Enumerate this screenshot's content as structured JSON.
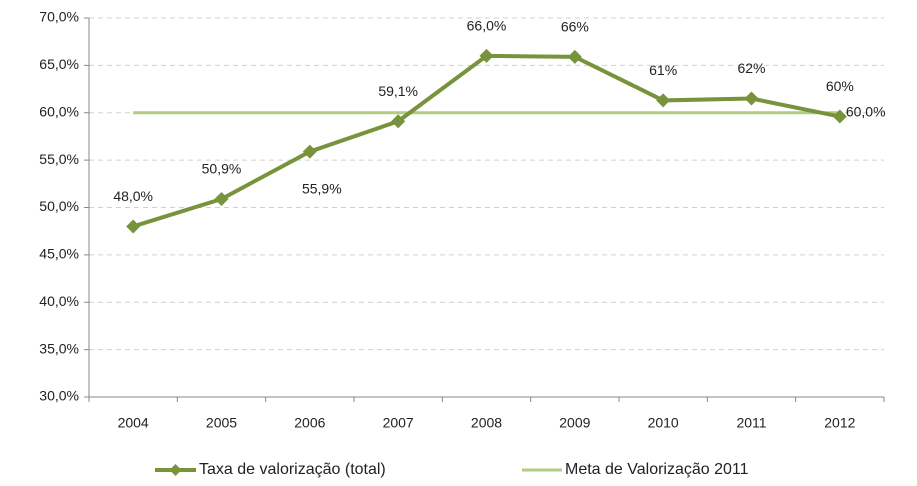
{
  "chart_data": {
    "type": "line",
    "categories": [
      "2004",
      "2005",
      "2006",
      "2007",
      "2008",
      "2009",
      "2010",
      "2011",
      "2012"
    ],
    "series": [
      {
        "name": "Taxa de valorização (total)",
        "color": "#77933c",
        "values": [
          48.0,
          50.9,
          55.9,
          59.1,
          66.0,
          65.9,
          61.3,
          61.5,
          59.6
        ],
        "value_labels": [
          "48,0%",
          "50,9%",
          "55,9%",
          "59,1%",
          "66,0%",
          "66%",
          "61%",
          "62%",
          "60%"
        ]
      },
      {
        "name": "Meta de Valorização 2011",
        "color": "#b3cc82",
        "values": [
          60,
          60,
          60,
          60,
          60,
          60,
          60,
          60,
          60
        ],
        "value_labels": [
          null,
          null,
          null,
          null,
          null,
          null,
          null,
          null,
          "60,0%"
        ]
      }
    ],
    "ylim": [
      30,
      70
    ],
    "yticks": [
      {
        "value": 30,
        "label": "30,0%"
      },
      {
        "value": 35,
        "label": "35,0%"
      },
      {
        "value": 40,
        "label": "40,0%"
      },
      {
        "value": 45,
        "label": "45,0%"
      },
      {
        "value": 50,
        "label": "50,0%"
      },
      {
        "value": 55,
        "label": "55,0%"
      },
      {
        "value": 60,
        "label": "60,0%"
      },
      {
        "value": 65,
        "label": "65,0%"
      },
      {
        "value": 70,
        "label": "70,0%"
      }
    ],
    "grid": true,
    "legend": "bottom"
  }
}
